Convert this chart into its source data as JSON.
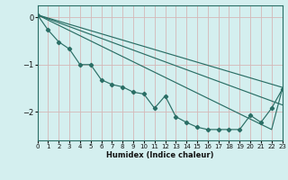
{
  "xlabel": "Humidex (Indice chaleur)",
  "bg_color": "#d4efef",
  "line_color": "#2a6e65",
  "grid_color": "#d4b8b8",
  "xlim": [
    0,
    23
  ],
  "ylim": [
    -2.6,
    0.25
  ],
  "yticks": [
    0,
    -1,
    -2
  ],
  "xticks": [
    0,
    1,
    2,
    3,
    4,
    5,
    6,
    7,
    8,
    9,
    10,
    11,
    12,
    13,
    14,
    15,
    16,
    17,
    18,
    19,
    20,
    21,
    22,
    23
  ],
  "main_x": [
    0,
    1,
    2,
    3,
    4,
    5,
    6,
    7,
    8,
    9,
    10,
    11,
    12,
    13,
    14,
    15,
    16,
    17,
    18,
    19,
    20,
    21,
    22,
    23
  ],
  "main_y": [
    0.05,
    -0.27,
    -0.52,
    -0.67,
    -1.0,
    -1.0,
    -1.32,
    -1.42,
    -1.47,
    -1.58,
    -1.62,
    -1.92,
    -1.66,
    -2.1,
    -2.22,
    -2.32,
    -2.37,
    -2.37,
    -2.37,
    -2.37,
    -2.07,
    -2.22,
    -1.92,
    -1.52
  ],
  "line1_x": [
    0,
    23
  ],
  "line1_y": [
    0.05,
    -1.48
  ],
  "line2_x": [
    0,
    23
  ],
  "line2_y": [
    0.05,
    -1.85
  ],
  "line3_x": [
    0,
    22,
    23
  ],
  "line3_y": [
    0.05,
    -2.37,
    -1.52
  ]
}
